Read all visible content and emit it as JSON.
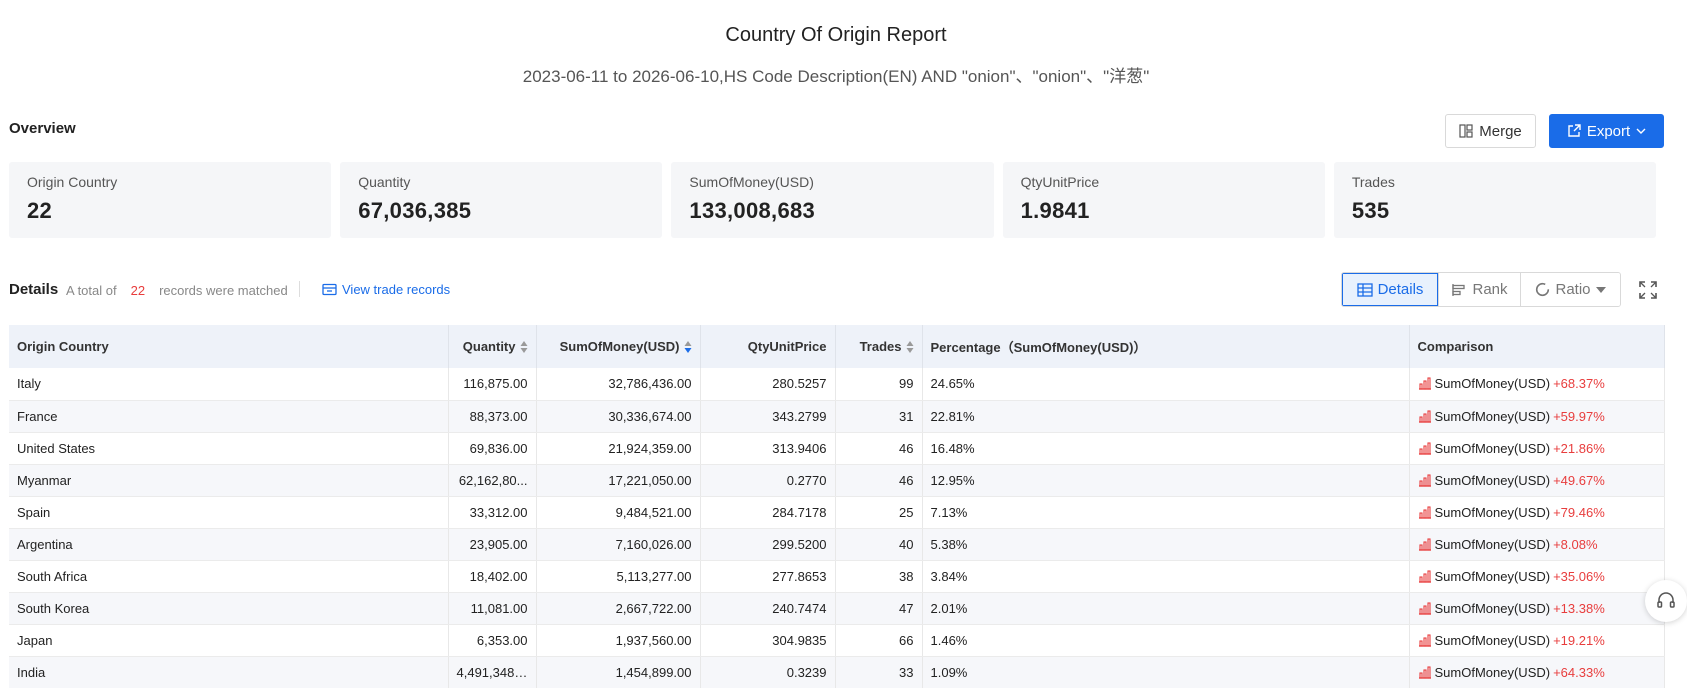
{
  "report": {
    "title": "Country Of Origin Report",
    "subtitle": "2023-06-11 to 2026-06-10,HS Code Description(EN) AND \"onion\"、\"onion\"、\"洋葱\""
  },
  "overview": {
    "label": "Overview",
    "merge_label": "Merge",
    "export_label": "Export",
    "cards": [
      {
        "label": "Origin Country",
        "value": "22"
      },
      {
        "label": "Quantity",
        "value": "67,036,385"
      },
      {
        "label": "SumOfMoney(USD)",
        "value": "133,008,683"
      },
      {
        "label": "QtyUnitPrice",
        "value": "1.9841"
      },
      {
        "label": "Trades",
        "value": "535"
      }
    ]
  },
  "details": {
    "label": "Details",
    "summary_prefix": "A total of",
    "summary_count": "22",
    "summary_suffix": "records were matched",
    "view_link": "View trade records",
    "views": {
      "details": "Details",
      "rank": "Rank",
      "ratio": "Ratio"
    },
    "active_view": "details"
  },
  "table": {
    "headers": {
      "country": "Origin Country",
      "quantity": "Quantity",
      "money": "SumOfMoney(USD)",
      "unit_price": "QtyUnitPrice",
      "trades": "Trades",
      "percentage": "Percentage（SumOfMoney(USD)）",
      "comparison": "Comparison"
    },
    "comparison_label": "SumOfMoney(USD)",
    "rows": [
      {
        "country": "Italy",
        "quantity": "116,875.00",
        "money": "32,786,436.00",
        "unit_price": "280.5257",
        "trades": "99",
        "percentage": "24.65%",
        "change": "+68.37%"
      },
      {
        "country": "France",
        "quantity": "88,373.00",
        "money": "30,336,674.00",
        "unit_price": "343.2799",
        "trades": "31",
        "percentage": "22.81%",
        "change": "+59.97%"
      },
      {
        "country": "United States",
        "quantity": "69,836.00",
        "money": "21,924,359.00",
        "unit_price": "313.9406",
        "trades": "46",
        "percentage": "16.48%",
        "change": "+21.86%"
      },
      {
        "country": "Myanmar",
        "quantity": "62,162,80...",
        "money": "17,221,050.00",
        "unit_price": "0.2770",
        "trades": "46",
        "percentage": "12.95%",
        "change": "+49.67%"
      },
      {
        "country": "Spain",
        "quantity": "33,312.00",
        "money": "9,484,521.00",
        "unit_price": "284.7178",
        "trades": "25",
        "percentage": "7.13%",
        "change": "+79.46%"
      },
      {
        "country": "Argentina",
        "quantity": "23,905.00",
        "money": "7,160,026.00",
        "unit_price": "299.5200",
        "trades": "40",
        "percentage": "5.38%",
        "change": "+8.08%"
      },
      {
        "country": "South Africa",
        "quantity": "18,402.00",
        "money": "5,113,277.00",
        "unit_price": "277.8653",
        "trades": "38",
        "percentage": "3.84%",
        "change": "+35.06%"
      },
      {
        "country": "South Korea",
        "quantity": "11,081.00",
        "money": "2,667,722.00",
        "unit_price": "240.7474",
        "trades": "47",
        "percentage": "2.01%",
        "change": "+13.38%"
      },
      {
        "country": "Japan",
        "quantity": "6,353.00",
        "money": "1,937,560.00",
        "unit_price": "304.9835",
        "trades": "66",
        "percentage": "1.46%",
        "change": "+19.21%"
      },
      {
        "country": "India",
        "quantity": "4,491,348....",
        "money": "1,454,899.00",
        "unit_price": "0.3239",
        "trades": "33",
        "percentage": "1.09%",
        "change": "+64.33%"
      }
    ]
  },
  "colors": {
    "accent": "#1a6ce8",
    "increase": "#e83d3d"
  },
  "icons": {
    "merge": "merge-icon",
    "export": "export-icon",
    "view_records": "table-link-icon",
    "fullscreen": "fullscreen-icon",
    "support": "headset-icon",
    "trend": "bar-chart-icon"
  }
}
